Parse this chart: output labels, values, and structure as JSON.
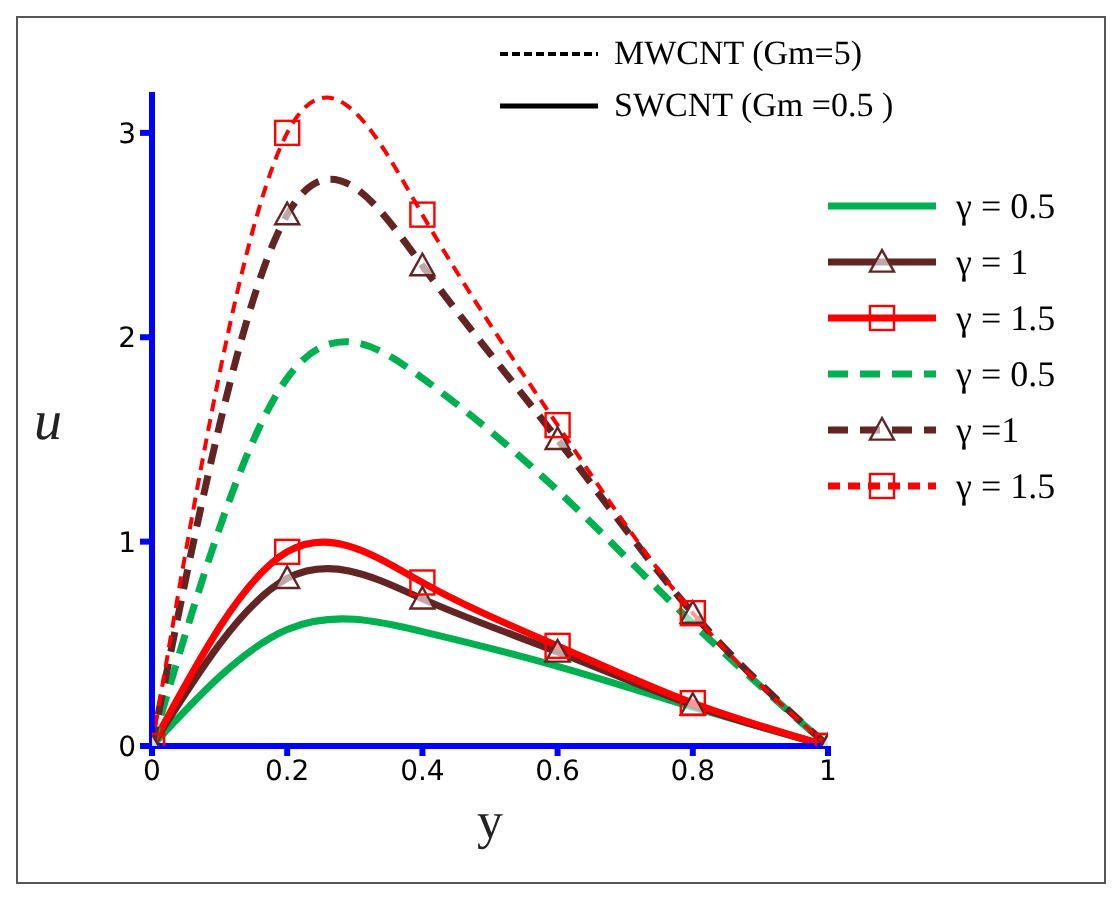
{
  "chart_data": {
    "type": "line",
    "xlabel": "y",
    "ylabel": "u",
    "xlim": [
      0,
      1
    ],
    "ylim": [
      0,
      3.2
    ],
    "xticks": [
      0,
      0.2,
      0.4,
      0.6,
      0.8,
      1
    ],
    "yticks": [
      0,
      1,
      2,
      3
    ],
    "grid": false,
    "legend": "top right",
    "annotations": [
      "MWCNT (Gm=5)",
      "SWCNT  (Gm =0.5 )"
    ],
    "x": [
      0,
      0.2,
      0.4,
      0.6,
      0.8,
      1
    ],
    "series": [
      {
        "name": "γ = 0.5",
        "color": "#00b050",
        "line_style": "solid",
        "marker": "none",
        "values": [
          0,
          0.57,
          0.56,
          0.39,
          0.19,
          0
        ]
      },
      {
        "name": "γ  = 1",
        "color": "#632523",
        "line_style": "solid",
        "marker": "triangle",
        "values": [
          0,
          0.82,
          0.72,
          0.46,
          0.2,
          0
        ]
      },
      {
        "name": "γ  = 1.5",
        "color": "#ff0000",
        "line_style": "solid",
        "marker": "square",
        "values": [
          0,
          0.95,
          0.8,
          0.49,
          0.21,
          0
        ]
      },
      {
        "name": "γ  = 0.5",
        "color": "#00b050",
        "line_style": "dashed",
        "marker": "none",
        "values": [
          0,
          1.8,
          1.8,
          1.25,
          0.6,
          0
        ]
      },
      {
        "name": "γ  =1",
        "color": "#632523",
        "line_style": "dashed",
        "marker": "triangle",
        "values": [
          0,
          2.6,
          2.35,
          1.5,
          0.65,
          0
        ]
      },
      {
        "name": "γ  = 1.5",
        "color": "#ff0000",
        "line_style": "dashed",
        "marker": "square",
        "values": [
          0,
          3.0,
          2.6,
          1.57,
          0.65,
          0
        ]
      }
    ]
  }
}
